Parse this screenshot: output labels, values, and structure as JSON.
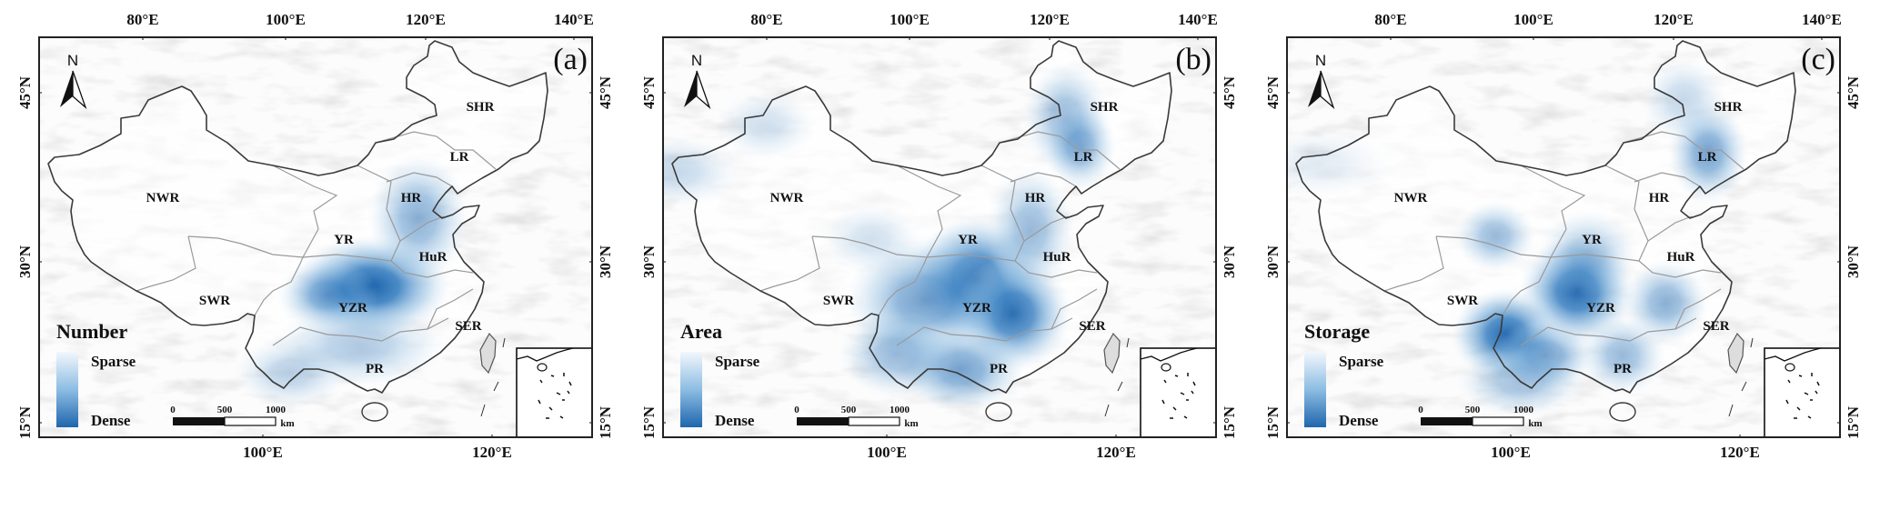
{
  "panels": [
    {
      "letter": "(a)",
      "legend_title": "Number"
    },
    {
      "letter": "(b)",
      "legend_title": "Area"
    },
    {
      "letter": "(c)",
      "legend_title": "Storage"
    }
  ],
  "legend": {
    "low": "Sparse",
    "high": "Dense",
    "colors": {
      "sparse": "#f2f7fc",
      "dense": "#1f66ad"
    }
  },
  "regions": [
    "NWR",
    "YR",
    "HR",
    "LR",
    "SHR",
    "HuR",
    "YZR",
    "SWR",
    "SER",
    "PR"
  ],
  "axes": {
    "top_lon": [
      "80°E",
      "100°E",
      "120°E",
      "140°E"
    ],
    "bottom_lon": [
      "100°E",
      "120°E"
    ],
    "left_lat": [
      "45°N",
      "30°N",
      "15°N"
    ],
    "right_lat": [
      "45°N",
      "30°N",
      "15°N"
    ]
  },
  "scale_bar": {
    "ticks": [
      "0",
      "500",
      "1000"
    ],
    "unit": "km"
  },
  "north_arrow": "N"
}
